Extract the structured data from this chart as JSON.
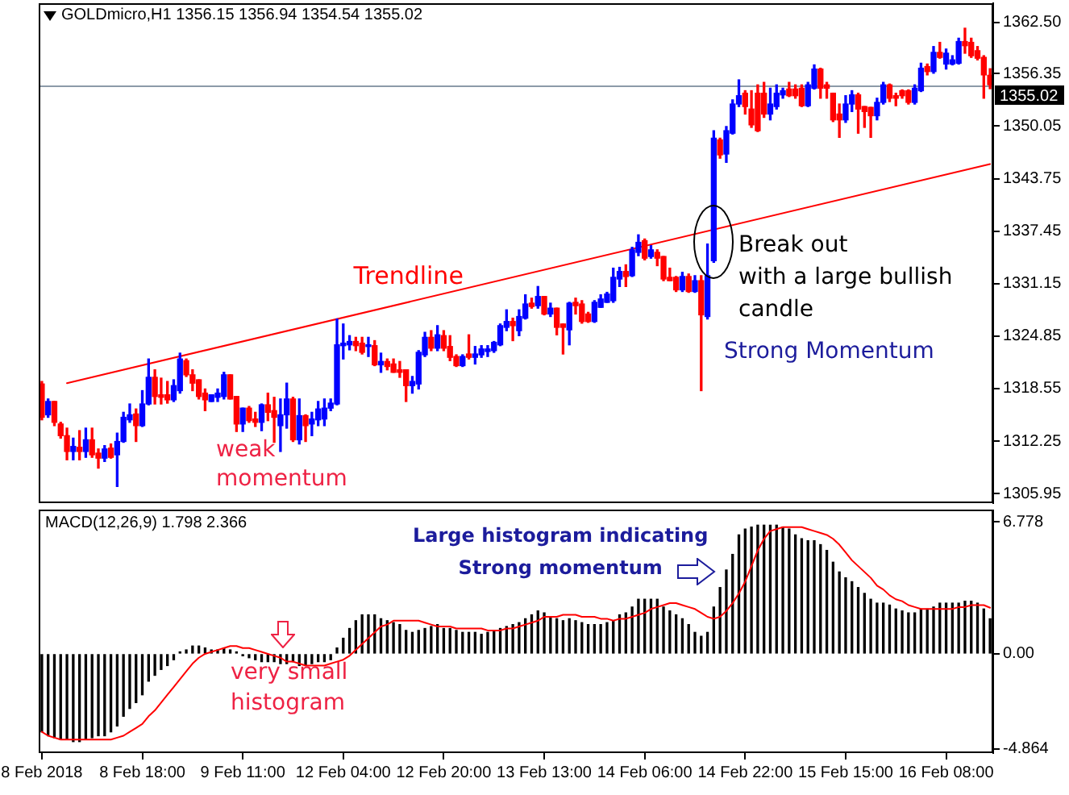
{
  "chart_data": [
    {
      "type": "candlestick",
      "title": "GOLDmicro,H1 1356.15 1356.94 1354.54 1355.02",
      "categories": [
        null,
        null,
        null,
        null,
        null,
        null,
        null,
        null,
        null,
        null,
        null,
        null,
        null,
        null,
        null,
        null,
        null,
        null,
        null,
        null,
        null,
        null,
        null,
        null,
        null,
        null,
        null,
        null,
        null,
        null,
        null,
        null,
        null,
        null,
        null,
        null,
        null,
        null,
        null,
        null,
        null,
        null,
        null,
        null,
        null,
        null,
        null,
        null,
        null,
        null,
        null,
        null,
        null,
        null,
        null,
        null,
        null,
        null,
        null,
        null,
        null,
        null,
        null,
        null,
        null,
        null,
        null,
        null,
        null,
        null,
        null,
        null,
        null,
        null,
        null,
        null,
        null,
        null,
        null,
        null,
        null,
        null,
        null,
        null,
        null,
        null,
        null,
        null,
        null,
        null,
        null,
        null,
        null,
        null,
        null,
        null,
        null,
        null,
        null,
        null,
        null,
        null,
        null,
        null,
        null,
        null,
        null,
        null,
        null,
        null,
        null,
        null,
        null,
        null,
        null,
        null,
        null,
        null,
        null,
        null,
        null,
        null,
        null,
        null,
        null,
        null,
        null,
        null,
        null,
        null,
        null,
        null,
        null,
        null,
        null,
        null,
        null,
        null,
        null,
        null,
        null,
        null,
        null,
        null,
        null,
        null,
        null,
        null,
        null,
        null,
        null,
        null
      ],
      "ohlc": [
        [
          1319.1,
          1319.4,
          1314.8,
          1315.1
        ],
        [
          1315.4,
          1317.3,
          1315.1,
          1317.0
        ],
        [
          1317.0,
          1317.0,
          1314.1,
          1314.5
        ],
        [
          1314.3,
          1314.5,
          1312.6,
          1312.9
        ],
        [
          1312.9,
          1313.8,
          1310.0,
          1311.0
        ],
        [
          1311.0,
          1312.6,
          1310.0,
          1311.6
        ],
        [
          1311.5,
          1313.5,
          1310.0,
          1311.0
        ],
        [
          1311.0,
          1313.8,
          1310.3,
          1312.4
        ],
        [
          1312.4,
          1313.8,
          1310.3,
          1310.6
        ],
        [
          1310.8,
          1311.3,
          1309.0,
          1310.2
        ],
        [
          1310.2,
          1311.7,
          1309.8,
          1311.3
        ],
        [
          1311.4,
          1311.9,
          1310.2,
          1310.3
        ],
        [
          1310.6,
          1313.2,
          1306.8,
          1312.2
        ],
        [
          1312.2,
          1315.7,
          1312.1,
          1315.1
        ],
        [
          1314.8,
          1316.7,
          1314.5,
          1315.4
        ],
        [
          1315.5,
          1316.1,
          1312.2,
          1314.1
        ],
        [
          1314.1,
          1318.3,
          1314.0,
          1316.7
        ],
        [
          1316.7,
          1322.1,
          1316.6,
          1319.9
        ],
        [
          1319.9,
          1320.8,
          1316.7,
          1317.6
        ],
        [
          1317.8,
          1319.8,
          1316.7,
          1317.5
        ],
        [
          1317.8,
          1319.4,
          1316.8,
          1317.2
        ],
        [
          1317.2,
          1319.6,
          1317.0,
          1318.9
        ],
        [
          1318.3,
          1322.8,
          1318.0,
          1322.1
        ],
        [
          1321.9,
          1322.1,
          1320.0,
          1320.2
        ],
        [
          1320.2,
          1320.8,
          1318.3,
          1319.2
        ],
        [
          1319.6,
          1319.6,
          1317.3,
          1317.6
        ],
        [
          1318.0,
          1318.5,
          1315.9,
          1317.2
        ],
        [
          1317.0,
          1317.8,
          1317.0,
          1317.8
        ],
        [
          1317.5,
          1318.5,
          1317.0,
          1318.0
        ],
        [
          1317.6,
          1320.5,
          1317.3,
          1320.2
        ],
        [
          1320.2,
          1320.2,
          1317.3,
          1317.3
        ],
        [
          1317.6,
          1317.6,
          1313.4,
          1314.3
        ],
        [
          1314.3,
          1316.2,
          1313.4,
          1316.2
        ],
        [
          1316.2,
          1316.4,
          1314.5,
          1314.7
        ],
        [
          1314.9,
          1315.7,
          1314.0,
          1314.5
        ],
        [
          1314.5,
          1316.7,
          1313.5,
          1316.6
        ],
        [
          1316.6,
          1318.0,
          1314.7,
          1315.7
        ],
        [
          1315.9,
          1317.5,
          1312.1,
          1315.1
        ],
        [
          1314.1,
          1317.3,
          1311.0,
          1315.4
        ],
        [
          1315.4,
          1319.2,
          1313.8,
          1317.3
        ],
        [
          1317.3,
          1317.5,
          1312.2,
          1312.4
        ],
        [
          1312.4,
          1317.3,
          1311.9,
          1315.3
        ],
        [
          1315.3,
          1315.4,
          1312.2,
          1314.1
        ],
        [
          1314.3,
          1315.7,
          1312.9,
          1314.9
        ],
        [
          1314.8,
          1317.0,
          1314.1,
          1316.1
        ],
        [
          1314.9,
          1317.3,
          1314.1,
          1316.2
        ],
        [
          1316.2,
          1317.3,
          1315.9,
          1316.8
        ],
        [
          1316.7,
          1326.9,
          1316.6,
          1323.8
        ],
        [
          1323.7,
          1326.3,
          1322.1,
          1324.0
        ],
        [
          1323.8,
          1324.9,
          1323.2,
          1324.2
        ],
        [
          1324.2,
          1324.7,
          1323.1,
          1323.7
        ],
        [
          1324.0,
          1324.7,
          1322.7,
          1322.9
        ],
        [
          1323.6,
          1324.7,
          1322.4,
          1323.8
        ],
        [
          1323.7,
          1324.3,
          1321.3,
          1321.4
        ],
        [
          1321.4,
          1322.8,
          1320.5,
          1321.8
        ],
        [
          1321.8,
          1322.1,
          1320.8,
          1321.2
        ],
        [
          1321.5,
          1322.1,
          1320.5,
          1320.5
        ],
        [
          1320.8,
          1321.8,
          1319.9,
          1320.5
        ],
        [
          1320.8,
          1320.8,
          1317.0,
          1318.9
        ],
        [
          1318.9,
          1320.0,
          1318.0,
          1319.4
        ],
        [
          1319.1,
          1323.1,
          1318.5,
          1322.9
        ],
        [
          1322.6,
          1325.3,
          1322.4,
          1324.7
        ],
        [
          1324.7,
          1325.5,
          1323.1,
          1323.4
        ],
        [
          1323.4,
          1326.1,
          1323.1,
          1325.0
        ],
        [
          1324.9,
          1325.5,
          1323.1,
          1323.4
        ],
        [
          1323.6,
          1324.9,
          1321.9,
          1322.3
        ],
        [
          1322.4,
          1322.6,
          1321.2,
          1321.3
        ],
        [
          1321.3,
          1322.6,
          1321.2,
          1322.4
        ],
        [
          1322.7,
          1325.0,
          1322.1,
          1322.3
        ],
        [
          1322.3,
          1323.6,
          1321.5,
          1322.7
        ],
        [
          1322.6,
          1323.7,
          1322.3,
          1323.3
        ],
        [
          1323.0,
          1323.7,
          1322.4,
          1323.3
        ],
        [
          1323.1,
          1324.2,
          1322.9,
          1324.1
        ],
        [
          1323.8,
          1326.3,
          1323.7,
          1326.1
        ],
        [
          1325.9,
          1328.0,
          1325.5,
          1326.6
        ],
        [
          1326.6,
          1327.0,
          1324.3,
          1326.1
        ],
        [
          1325.5,
          1328.0,
          1324.9,
          1327.2
        ],
        [
          1327.0,
          1329.8,
          1326.9,
          1328.7
        ],
        [
          1328.8,
          1329.4,
          1328.2,
          1328.4
        ],
        [
          1328.5,
          1330.8,
          1328.2,
          1329.6
        ],
        [
          1329.6,
          1329.6,
          1327.4,
          1327.5
        ],
        [
          1327.5,
          1328.8,
          1327.2,
          1328.2
        ],
        [
          1328.2,
          1328.2,
          1325.0,
          1325.9
        ],
        [
          1326.3,
          1326.3,
          1322.7,
          1325.9
        ],
        [
          1325.6,
          1328.9,
          1323.8,
          1328.8
        ],
        [
          1328.9,
          1329.4,
          1327.5,
          1328.5
        ],
        [
          1328.7,
          1329.1,
          1326.4,
          1326.6
        ],
        [
          1327.5,
          1327.7,
          1326.5,
          1326.6
        ],
        [
          1326.6,
          1329.1,
          1326.5,
          1328.9
        ],
        [
          1328.3,
          1329.8,
          1328.3,
          1329.3
        ],
        [
          1328.9,
          1330.1,
          1328.9,
          1329.9
        ],
        [
          1329.1,
          1333.0,
          1328.9,
          1331.9
        ],
        [
          1331.7,
          1333.1,
          1330.8,
          1332.6
        ],
        [
          1332.6,
          1333.4,
          1330.8,
          1332.0
        ],
        [
          1332.1,
          1335.5,
          1332.0,
          1335.2
        ],
        [
          1334.9,
          1337.0,
          1334.5,
          1336.1
        ],
        [
          1336.3,
          1336.5,
          1334.0,
          1334.2
        ],
        [
          1334.4,
          1335.7,
          1334.2,
          1335.2
        ],
        [
          1334.9,
          1335.2,
          1333.3,
          1334.2
        ],
        [
          1334.4,
          1334.4,
          1331.5,
          1331.7
        ],
        [
          1331.9,
          1333.0,
          1331.5,
          1331.5
        ],
        [
          1331.9,
          1332.0,
          1330.2,
          1330.4
        ],
        [
          1330.4,
          1332.5,
          1330.2,
          1332.0
        ],
        [
          1332.0,
          1332.3,
          1330.1,
          1330.2
        ],
        [
          1330.2,
          1332.1,
          1330.1,
          1331.5
        ],
        [
          1331.5,
          1332.1,
          1318.3,
          1327.4
        ],
        [
          1327.2,
          1335.9,
          1326.9,
          1332.1
        ],
        [
          1333.9,
          1349.5,
          1333.7,
          1348.6
        ],
        [
          1348.4,
          1348.6,
          1346.2,
          1346.6
        ],
        [
          1346.7,
          1350.0,
          1345.7,
          1349.5
        ],
        [
          1349.2,
          1353.2,
          1349.1,
          1352.7
        ],
        [
          1352.7,
          1355.6,
          1352.4,
          1353.7
        ],
        [
          1354.0,
          1354.3,
          1351.5,
          1352.4
        ],
        [
          1352.1,
          1354.3,
          1349.9,
          1350.2
        ],
        [
          1354.0,
          1355.0,
          1349.4,
          1349.5
        ],
        [
          1354.0,
          1355.3,
          1351.1,
          1351.5
        ],
        [
          1351.5,
          1354.6,
          1350.8,
          1352.7
        ],
        [
          1352.4,
          1355.0,
          1352.1,
          1354.0
        ],
        [
          1353.8,
          1354.6,
          1353.4,
          1354.3
        ],
        [
          1354.5,
          1355.3,
          1353.6,
          1353.7
        ],
        [
          1354.5,
          1355.0,
          1353.4,
          1353.7
        ],
        [
          1354.6,
          1355.0,
          1352.4,
          1352.5
        ],
        [
          1352.5,
          1355.3,
          1352.4,
          1355.0
        ],
        [
          1354.6,
          1357.4,
          1354.5,
          1356.9
        ],
        [
          1356.9,
          1357.0,
          1353.4,
          1354.6
        ],
        [
          1355.0,
          1355.3,
          1353.4,
          1354.6
        ],
        [
          1354.0,
          1354.0,
          1350.6,
          1350.8
        ],
        [
          1351.5,
          1352.7,
          1348.7,
          1350.8
        ],
        [
          1350.8,
          1353.7,
          1350.5,
          1352.7
        ],
        [
          1352.7,
          1354.3,
          1351.8,
          1353.8
        ],
        [
          1353.8,
          1354.0,
          1349.2,
          1352.1
        ],
        [
          1352.4,
          1352.4,
          1349.9,
          1351.8
        ],
        [
          1352.3,
          1352.3,
          1348.7,
          1351.3
        ],
        [
          1351.3,
          1353.4,
          1350.8,
          1352.9
        ],
        [
          1352.9,
          1355.3,
          1352.7,
          1355.0
        ],
        [
          1355.0,
          1355.1,
          1353.0,
          1353.4
        ],
        [
          1353.7,
          1354.0,
          1352.5,
          1353.4
        ],
        [
          1354.3,
          1354.4,
          1353.4,
          1353.7
        ],
        [
          1354.3,
          1354.4,
          1352.7,
          1352.9
        ],
        [
          1352.9,
          1355.0,
          1352.7,
          1354.6
        ],
        [
          1354.3,
          1357.6,
          1354.2,
          1357.0
        ],
        [
          1357.2,
          1357.5,
          1356.2,
          1356.6
        ],
        [
          1356.6,
          1359.6,
          1356.4,
          1358.9
        ],
        [
          1358.9,
          1360.1,
          1358.2,
          1358.3
        ],
        [
          1357.5,
          1359.3,
          1356.9,
          1358.8
        ],
        [
          1357.5,
          1358.5,
          1357.4,
          1358.0
        ],
        [
          1357.6,
          1360.6,
          1357.5,
          1360.2
        ],
        [
          1360.2,
          1361.8,
          1358.8,
          1359.7
        ],
        [
          1360.1,
          1360.6,
          1358.3,
          1358.5
        ],
        [
          1359.1,
          1359.6,
          1358.0,
          1358.2
        ],
        [
          1358.3,
          1358.5,
          1353.4,
          1356.2
        ],
        [
          1356.15,
          1356.94,
          1354.54,
          1355.02
        ]
      ],
      "colors": [
        "#ff0000",
        "#0000ff",
        "#ff0000",
        "#ff0000",
        "#ff0000",
        "#0000ff",
        "#ff0000",
        "#0000ff",
        "#ff0000",
        "#ff0000",
        "#0000ff",
        "#ff0000",
        "#0000ff",
        "#0000ff",
        "#0000ff",
        "#ff0000",
        "#0000ff",
        "#0000ff",
        "#ff0000",
        "#ff0000",
        "#ff0000",
        "#0000ff",
        "#0000ff",
        "#ff0000",
        "#ff0000",
        "#ff0000",
        "#ff0000",
        "#0000ff",
        "#0000ff",
        "#0000ff",
        "#ff0000",
        "#ff0000",
        "#0000ff",
        "#ff0000",
        "#ff0000",
        "#0000ff",
        "#ff0000",
        "#ff0000",
        "#0000ff",
        "#0000ff",
        "#ff0000",
        "#0000ff",
        "#ff0000",
        "#0000ff",
        "#0000ff",
        "#0000ff",
        "#0000ff",
        "#0000ff",
        "#0000ff",
        "#0000ff",
        "#ff0000",
        "#ff0000",
        "#0000ff",
        "#ff0000",
        "#0000ff",
        "#ff0000",
        "#ff0000",
        "#ff0000",
        "#ff0000",
        "#0000ff",
        "#0000ff",
        "#0000ff",
        "#ff0000",
        "#0000ff",
        "#ff0000",
        "#ff0000",
        "#ff0000",
        "#0000ff",
        "#ff0000",
        "#0000ff",
        "#0000ff",
        "#0000ff",
        "#0000ff",
        "#0000ff",
        "#0000ff",
        "#ff0000",
        "#0000ff",
        "#0000ff",
        "#ff0000",
        "#0000ff",
        "#ff0000",
        "#0000ff",
        "#ff0000",
        "#ff0000",
        "#0000ff",
        "#ff0000",
        "#ff0000",
        "#ff0000",
        "#0000ff",
        "#0000ff",
        "#0000ff",
        "#0000ff",
        "#0000ff",
        "#ff0000",
        "#0000ff",
        "#0000ff",
        "#ff0000",
        "#0000ff",
        "#ff0000",
        "#ff0000",
        "#ff0000",
        "#ff0000",
        "#0000ff",
        "#ff0000",
        "#0000ff",
        "#ff0000",
        "#0000ff",
        "#0000ff",
        "#ff0000",
        "#0000ff",
        "#0000ff",
        "#0000ff",
        "#ff0000",
        "#ff0000",
        "#ff0000",
        "#ff0000",
        "#0000ff",
        "#0000ff",
        "#0000ff",
        "#ff0000",
        "#ff0000",
        "#ff0000",
        "#0000ff",
        "#0000ff",
        "#ff0000",
        "#ff0000",
        "#ff0000",
        "#ff0000",
        "#0000ff",
        "#0000ff",
        "#ff0000",
        "#ff0000",
        "#ff0000",
        "#0000ff",
        "#0000ff",
        "#ff0000",
        "#ff0000",
        "#ff0000",
        "#ff0000",
        "#0000ff",
        "#0000ff",
        "#ff0000",
        "#0000ff",
        "#ff0000",
        "#0000ff",
        "#0000ff",
        "#0000ff",
        "#ff0000",
        "#ff0000",
        "#ff0000",
        "#ff0000",
        "#ff0000"
      ],
      "series": [
        {
          "type": "line",
          "name": "Trendline",
          "color": "#ff0000",
          "values": [
            null,
            null,
            null,
            null,
            1319.2,
            null,
            null,
            null,
            null,
            null,
            null,
            null,
            null,
            null,
            null,
            null,
            null,
            null,
            null,
            null,
            null,
            null,
            null,
            null,
            null,
            null,
            null,
            null,
            null,
            null,
            null,
            null,
            null,
            null,
            null,
            null,
            null,
            null,
            null,
            null,
            null,
            null,
            null,
            null,
            null,
            null,
            null,
            null,
            null,
            null,
            null,
            null,
            null,
            null,
            null,
            null,
            null,
            null,
            null,
            null,
            null,
            null,
            null,
            null,
            null,
            null,
            null,
            null,
            null,
            null,
            null,
            null,
            null,
            null,
            null,
            null,
            null,
            null,
            null,
            null,
            null,
            null,
            null,
            null,
            null,
            null,
            null,
            null,
            null,
            null,
            null,
            null,
            null,
            null,
            null,
            null,
            null,
            null,
            null,
            null,
            null,
            null,
            null,
            null,
            null,
            null,
            null,
            null,
            null,
            null,
            null,
            null,
            null,
            null,
            null,
            null,
            null,
            null,
            null,
            null,
            null,
            null,
            null,
            null,
            null,
            null,
            null,
            null,
            null,
            null,
            null,
            null,
            null,
            null,
            null,
            null,
            null,
            null,
            null,
            null,
            null,
            null,
            null,
            null,
            null,
            null,
            null,
            null,
            null,
            null,
            null,
            1345.5
          ]
        }
      ],
      "ylim": [
        1304.8,
        1364.8
      ],
      "yticks": [
        1305.95,
        1312.25,
        1318.55,
        1324.85,
        1331.15,
        1337.45,
        1343.75,
        1350.05,
        1356.35,
        {
          "value": 1362.5,
          "label": "1362.50"
        }
      ],
      "ref_lines": [
        {
          "axis": "y",
          "value": 1355.02,
          "label": "1355.02",
          "color": "#8c9aa8"
        }
      ],
      "annotations": [
        "weak\nmomentum",
        "Break out\nwith a large bullish\ncandle",
        "Strong Momentum"
      ]
    },
    {
      "type": "bar",
      "title": "MACD(12,26,9) 1.798 2.366",
      "categories": [
        "8 Feb 2018",
        null,
        null,
        null,
        null,
        null,
        null,
        null,
        null,
        null,
        null,
        null,
        null,
        null,
        null,
        null,
        "8 Feb 18:00",
        null,
        null,
        null,
        null,
        null,
        null,
        null,
        null,
        null,
        null,
        null,
        null,
        null,
        null,
        null,
        "9 Feb 11:00",
        null,
        null,
        null,
        null,
        null,
        null,
        null,
        null,
        null,
        null,
        null,
        null,
        null,
        null,
        null,
        "12 Feb 04:00",
        null,
        null,
        null,
        null,
        null,
        null,
        null,
        null,
        null,
        null,
        null,
        null,
        null,
        null,
        null,
        "12 Feb 20:00",
        null,
        null,
        null,
        null,
        null,
        null,
        null,
        null,
        null,
        null,
        null,
        null,
        null,
        null,
        null,
        "13 Feb 13:00",
        null,
        null,
        null,
        null,
        null,
        null,
        null,
        null,
        null,
        null,
        null,
        null,
        null,
        null,
        null,
        "14 Feb 06:00",
        null,
        null,
        null,
        null,
        null,
        null,
        null,
        null,
        null,
        null,
        null,
        null,
        null,
        null,
        null,
        "14 Feb 22:00",
        null,
        null,
        null,
        null,
        null,
        null,
        null,
        null,
        null,
        null,
        null,
        null,
        null,
        null,
        null,
        "15 Feb 15:00",
        null,
        null,
        null,
        null,
        null,
        null,
        null,
        null,
        null,
        null,
        null,
        null,
        null,
        null,
        null,
        "16 Feb 08:00",
        null,
        null,
        null,
        null,
        null,
        null,
        null
      ],
      "series": [
        {
          "type": "bar",
          "color": "#000000",
          "values": [
            -4.0,
            -4.2,
            -4.3,
            -4.4,
            -4.4,
            -4.5,
            -4.5,
            -4.4,
            -4.3,
            -4.2,
            -4.2,
            -4.0,
            -3.7,
            -3.2,
            -2.8,
            -2.5,
            -2.1,
            -1.4,
            -1.1,
            -0.8,
            -0.6,
            -0.3,
            0.1,
            0.2,
            0.4,
            0.4,
            0.3,
            0.2,
            0.2,
            0.3,
            0.2,
            0.1,
            -0.1,
            -0.2,
            -0.3,
            -0.4,
            -0.4,
            -0.4,
            -0.5,
            -0.5,
            -0.4,
            -0.6,
            -0.6,
            -0.5,
            -0.4,
            -0.4,
            -0.3,
            0.3,
            0.8,
            1.3,
            1.7,
            2.0,
            2.0,
            2.0,
            1.8,
            1.7,
            1.6,
            1.5,
            1.2,
            1.1,
            1.2,
            1.3,
            1.4,
            1.5,
            1.3,
            1.3,
            1.2,
            1.1,
            1.1,
            1.1,
            1.0,
            1.1,
            1.2,
            1.3,
            1.4,
            1.5,
            1.6,
            1.8,
            2.0,
            2.2,
            2.1,
            1.9,
            1.8,
            1.7,
            1.8,
            1.7,
            1.6,
            1.5,
            1.5,
            1.5,
            1.6,
            1.7,
            2.0,
            2.1,
            2.4,
            2.8,
            2.8,
            2.8,
            2.8,
            2.4,
            2.2,
            2.0,
            1.8,
            1.5,
            1.1,
            0.9,
            1.1,
            2.4,
            3.4,
            4.3,
            5.1,
            6.1,
            6.4,
            6.5,
            6.6,
            6.6,
            6.6,
            6.6,
            6.5,
            6.4,
            6.1,
            5.9,
            5.8,
            5.8,
            5.6,
            5.3,
            4.7,
            4.2,
            3.9,
            3.7,
            3.4,
            3.1,
            2.8,
            2.6,
            2.6,
            2.5,
            2.3,
            2.2,
            2.1,
            2.1,
            2.3,
            2.3,
            2.4,
            2.6,
            2.6,
            2.6,
            2.6,
            2.7,
            2.7,
            2.6,
            2.3,
            1.798
          ]
        },
        {
          "type": "line",
          "color": "#ff0000",
          "values": [
            -4.0,
            -4.2,
            -4.3,
            -4.4,
            -4.4,
            -4.4,
            -4.4,
            -4.4,
            -4.4,
            -4.4,
            -4.4,
            -4.4,
            -4.3,
            -4.2,
            -4.0,
            -3.8,
            -3.6,
            -3.2,
            -2.9,
            -2.5,
            -2.1,
            -1.7,
            -1.3,
            -0.9,
            -0.5,
            -0.2,
            0.0,
            0.1,
            0.2,
            0.3,
            0.4,
            0.4,
            0.3,
            0.3,
            0.2,
            0.1,
            0.0,
            -0.1,
            -0.2,
            -0.4,
            -0.4,
            -0.5,
            -0.6,
            -0.6,
            -0.6,
            -0.6,
            -0.5,
            -0.4,
            -0.3,
            -0.1,
            0.2,
            0.5,
            0.8,
            1.1,
            1.4,
            1.5,
            1.7,
            1.7,
            1.7,
            1.7,
            1.7,
            1.6,
            1.5,
            1.4,
            1.4,
            1.4,
            1.3,
            1.3,
            1.3,
            1.3,
            1.3,
            1.2,
            1.2,
            1.2,
            1.3,
            1.3,
            1.4,
            1.5,
            1.6,
            1.7,
            1.9,
            1.9,
            1.9,
            2.0,
            2.0,
            2.0,
            1.9,
            1.9,
            1.9,
            1.8,
            1.8,
            1.7,
            1.8,
            1.8,
            1.9,
            2.0,
            2.1,
            2.3,
            2.4,
            2.5,
            2.6,
            2.6,
            2.5,
            2.4,
            2.3,
            2.1,
            1.9,
            1.8,
            1.9,
            2.2,
            2.6,
            3.1,
            3.7,
            4.5,
            5.3,
            5.9,
            6.3,
            6.4,
            6.5,
            6.5,
            6.5,
            6.5,
            6.4,
            6.3,
            6.2,
            6.1,
            5.9,
            5.6,
            5.2,
            4.8,
            4.5,
            4.2,
            3.9,
            3.5,
            3.3,
            3.0,
            2.8,
            2.7,
            2.5,
            2.4,
            2.3,
            2.3,
            2.3,
            2.3,
            2.3,
            2.3,
            2.4,
            2.4,
            2.5,
            2.5,
            2.5,
            2.366
          ]
        }
      ],
      "ylim": [
        -5.09,
        7.4
      ],
      "yticks": [
        -4.864,
        {
          "value": 0,
          "label": "0.00"
        },
        6.778
      ],
      "annotations": [
        "Large histogram indicating\nStrong momentum",
        "very small\nhistogram"
      ]
    }
  ]
}
